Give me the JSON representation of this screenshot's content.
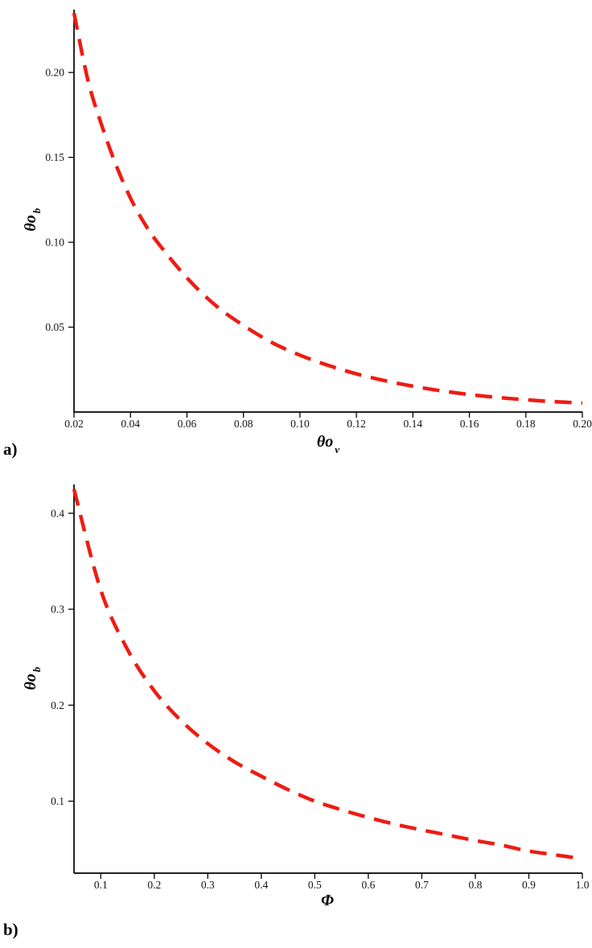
{
  "figure": {
    "background": "#ffffff",
    "panel_a_label": "a)",
    "panel_b_label": "b)"
  },
  "chart_data": [
    {
      "id": "a",
      "type": "line",
      "title": "",
      "panel_label": "a)",
      "line_color": "#ee1c12",
      "line_style": "dashed",
      "line_width": 4.5,
      "axis_color": "#000000",
      "xlabel": {
        "main": "θo",
        "sub": "v"
      },
      "ylabel": {
        "main": "θo",
        "sub": "b"
      },
      "x_range": [
        0.02,
        0.2
      ],
      "y_range": [
        0.0,
        0.237
      ],
      "x_ticks": [
        0.02,
        0.04,
        0.06,
        0.08,
        0.1,
        0.12,
        0.14,
        0.16,
        0.18,
        0.2
      ],
      "x_tick_labels": [
        "0.02",
        "0.04",
        "0.06",
        "0.08",
        "0.10",
        "0.12",
        "0.14",
        "0.16",
        "0.18",
        "0.20"
      ],
      "y_ticks": [
        0.05,
        0.1,
        0.15,
        0.2
      ],
      "y_tick_labels": [
        "0.05",
        "0.10",
        "0.15",
        "0.20"
      ],
      "grid": false,
      "legend": "none",
      "points": [
        [
          0.02,
          0.235
        ],
        [
          0.025,
          0.195
        ],
        [
          0.03,
          0.168
        ],
        [
          0.035,
          0.145
        ],
        [
          0.04,
          0.126
        ],
        [
          0.045,
          0.111
        ],
        [
          0.05,
          0.099
        ],
        [
          0.06,
          0.079
        ],
        [
          0.07,
          0.063
        ],
        [
          0.08,
          0.051
        ],
        [
          0.09,
          0.041
        ],
        [
          0.1,
          0.0335
        ],
        [
          0.11,
          0.0275
        ],
        [
          0.12,
          0.0225
        ],
        [
          0.13,
          0.0185
        ],
        [
          0.14,
          0.0152
        ],
        [
          0.15,
          0.0125
        ],
        [
          0.16,
          0.0103
        ],
        [
          0.17,
          0.0086
        ],
        [
          0.18,
          0.0072
        ],
        [
          0.19,
          0.0061
        ],
        [
          0.2,
          0.0053
        ]
      ]
    },
    {
      "id": "b",
      "type": "line",
      "title": "",
      "panel_label": "b)",
      "line_color": "#ee1c12",
      "line_style": "dashed",
      "line_width": 4.5,
      "axis_color": "#000000",
      "xlabel": {
        "main": "Φ",
        "sub": ""
      },
      "ylabel": {
        "main": "θo",
        "sub": "b"
      },
      "x_range": [
        0.05,
        1.0
      ],
      "y_range": [
        0.025,
        0.43
      ],
      "x_ticks": [
        0.1,
        0.2,
        0.3,
        0.4,
        0.5,
        0.6,
        0.7,
        0.8,
        0.9,
        1.0
      ],
      "x_tick_labels": [
        "0.1",
        "0.2",
        "0.3",
        "0.4",
        "0.5",
        "0.6",
        "0.7",
        "0.8",
        "0.9",
        "1.0"
      ],
      "y_ticks": [
        0.1,
        0.2,
        0.3,
        0.4
      ],
      "y_tick_labels": [
        "0.1",
        "0.2",
        "0.3",
        "0.4"
      ],
      "grid": false,
      "legend": "none",
      "points": [
        [
          0.05,
          0.425
        ],
        [
          0.1,
          0.32
        ],
        [
          0.15,
          0.258
        ],
        [
          0.2,
          0.215
        ],
        [
          0.25,
          0.184
        ],
        [
          0.3,
          0.16
        ],
        [
          0.35,
          0.141
        ],
        [
          0.4,
          0.126
        ],
        [
          0.45,
          0.112
        ],
        [
          0.5,
          0.1
        ],
        [
          0.55,
          0.091
        ],
        [
          0.6,
          0.083
        ],
        [
          0.65,
          0.076
        ],
        [
          0.7,
          0.07
        ],
        [
          0.75,
          0.0645
        ],
        [
          0.8,
          0.059
        ],
        [
          0.85,
          0.054
        ],
        [
          0.9,
          0.048
        ],
        [
          0.95,
          0.044
        ],
        [
          1.0,
          0.04
        ]
      ]
    }
  ]
}
